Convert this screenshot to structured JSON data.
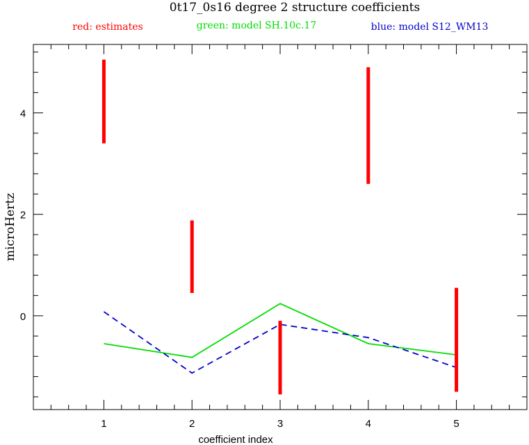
{
  "chart_data": {
    "type": "line",
    "title": "0t17_0s16 degree 2 structure coefficients",
    "legend": [
      {
        "label": "red: estimates",
        "color": "#ff0000"
      },
      {
        "label": "green: model SH.10c.17",
        "color": "#00dd00"
      },
      {
        "label": "blue: model S12_WM13",
        "color": "#0000cc"
      }
    ],
    "xlabel": "coefficient index",
    "ylabel": "microHertz",
    "xlim": [
      0.2,
      5.8
    ],
    "ylim": [
      -1.85,
      5.35
    ],
    "x_ticks": [
      1,
      2,
      3,
      4,
      5
    ],
    "x_tick_labels": [
      "1",
      "2",
      "3",
      "4",
      "5"
    ],
    "y_ticks": [
      0,
      2,
      4
    ],
    "y_tick_labels": [
      "0",
      "2",
      "4"
    ],
    "x_minor_step": 0.2,
    "y_minor_step": 0.4,
    "estimates": [
      {
        "x": 1,
        "low": 3.4,
        "high": 5.05
      },
      {
        "x": 2,
        "low": 0.45,
        "high": 1.88
      },
      {
        "x": 3,
        "low": -1.55,
        "high": -0.1
      },
      {
        "x": 4,
        "low": 2.6,
        "high": 4.9
      },
      {
        "x": 5,
        "low": -1.5,
        "high": 0.55
      }
    ],
    "series": [
      {
        "name": "model SH.10c.17",
        "color": "#00dd00",
        "style": "solid",
        "x": [
          1,
          2,
          3,
          4,
          5
        ],
        "values": [
          -0.55,
          -0.82,
          0.24,
          -0.55,
          -0.77
        ]
      },
      {
        "name": "model S12_WM13",
        "color": "#0000cc",
        "style": "dashed",
        "x": [
          1,
          2,
          3,
          4,
          5
        ],
        "values": [
          0.08,
          -1.13,
          -0.17,
          -0.43,
          -1.02
        ]
      }
    ]
  }
}
